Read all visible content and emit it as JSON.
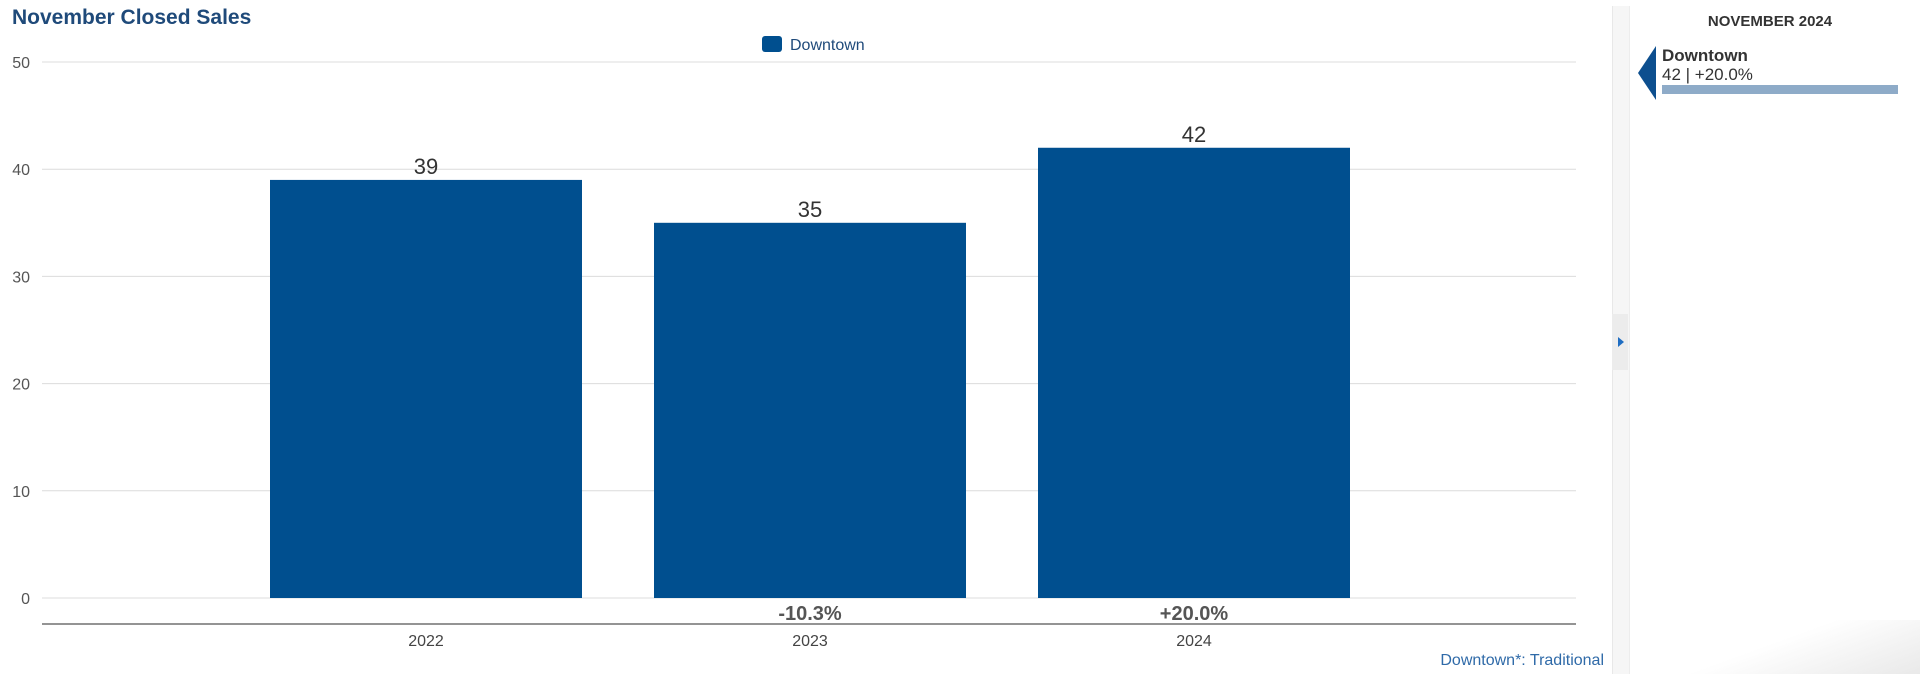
{
  "title": "November Closed Sales",
  "footer_note": "Downtown*: Traditional",
  "chart_data": {
    "type": "bar",
    "title": "November Closed Sales",
    "categories": [
      "2022",
      "2023",
      "2024"
    ],
    "series": [
      {
        "name": "Downtown",
        "values": [
          39,
          35,
          42
        ],
        "color": "#004f8f"
      }
    ],
    "data_labels": [
      "39",
      "35",
      "42"
    ],
    "change_labels": [
      "",
      "-10.3%",
      "+20.0%"
    ],
    "yticks": [
      "0",
      "10",
      "20",
      "30",
      "40",
      "50"
    ],
    "ylim": [
      0,
      50
    ],
    "xlabel": "",
    "ylabel": "",
    "grid": true,
    "legend_position": "top-center"
  },
  "side_panel": {
    "title": "NOVEMBER 2024",
    "items": [
      {
        "name": "Downtown",
        "value_text": "42 | +20.0%",
        "bar_fraction": 1.0
      }
    ]
  },
  "colors": {
    "bar": "#004f8f",
    "title": "#1f4a7a",
    "side_bar": "#8eabc8",
    "link": "#2f6aa8"
  }
}
